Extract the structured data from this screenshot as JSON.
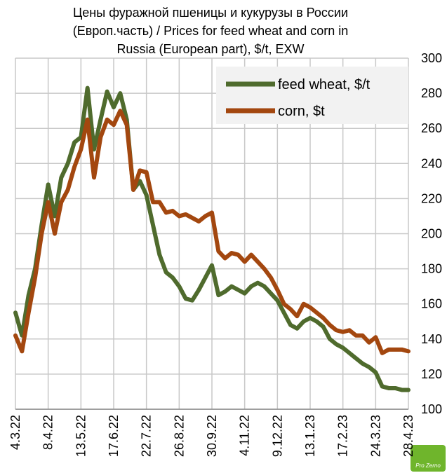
{
  "chart_data": {
    "type": "line",
    "title": [
      "Цены фуражной пшеницы и кукурузы в России",
      "(Европ.часть) / Prices for feed wheat and corn in",
      "Russia (European part), $/t, EXW"
    ],
    "categories": [
      "4.3.22",
      null,
      null,
      null,
      null,
      "8.4.22",
      null,
      null,
      null,
      null,
      "13.5.22",
      null,
      null,
      null,
      null,
      "17.6.22",
      null,
      null,
      null,
      null,
      "22.7.22",
      null,
      null,
      null,
      null,
      "26.8.22",
      null,
      null,
      null,
      null,
      "30.9.22",
      null,
      null,
      null,
      null,
      "4.11.22",
      null,
      null,
      null,
      null,
      "9.12.22",
      null,
      null,
      null,
      null,
      "13.1.23",
      null,
      null,
      null,
      null,
      "17.2.23",
      null,
      null,
      null,
      null,
      "24.3.23",
      null,
      null,
      null,
      null,
      "28.4.23"
    ],
    "series": [
      {
        "name": "feed wheat, $/t",
        "color": "#4f6b2d",
        "values": [
          155,
          142,
          165,
          180,
          205,
          228,
          210,
          232,
          240,
          252,
          255,
          283,
          248,
          265,
          281,
          272,
          280,
          265,
          225,
          230,
          222,
          205,
          188,
          178,
          175,
          170,
          163,
          162,
          168,
          175,
          182,
          165,
          167,
          170,
          168,
          166,
          170,
          172,
          170,
          166,
          162,
          155,
          148,
          146,
          150,
          152,
          150,
          147,
          140,
          137,
          135,
          132,
          129,
          126,
          124,
          121,
          113,
          112,
          112,
          111,
          111
        ]
      },
      {
        "name": "corn, $t",
        "color": "#a3470f",
        "values": [
          142,
          133,
          155,
          175,
          200,
          218,
          200,
          218,
          225,
          238,
          248,
          265,
          232,
          255,
          265,
          262,
          270,
          262,
          225,
          236,
          235,
          218,
          218,
          212,
          213,
          210,
          211,
          209,
          207,
          210,
          212,
          190,
          186,
          189,
          188,
          184,
          188,
          184,
          180,
          175,
          168,
          160,
          157,
          153,
          160,
          158,
          155,
          152,
          148,
          145,
          144,
          145,
          142,
          142,
          138,
          141,
          132,
          134,
          134,
          134,
          133
        ]
      }
    ],
    "ylim": [
      100,
      300
    ],
    "yticks": [
      100,
      120,
      140,
      160,
      180,
      200,
      220,
      240,
      260,
      280,
      300
    ],
    "grid": true,
    "legend": "upper right",
    "watermark": "Pro Zerno"
  }
}
